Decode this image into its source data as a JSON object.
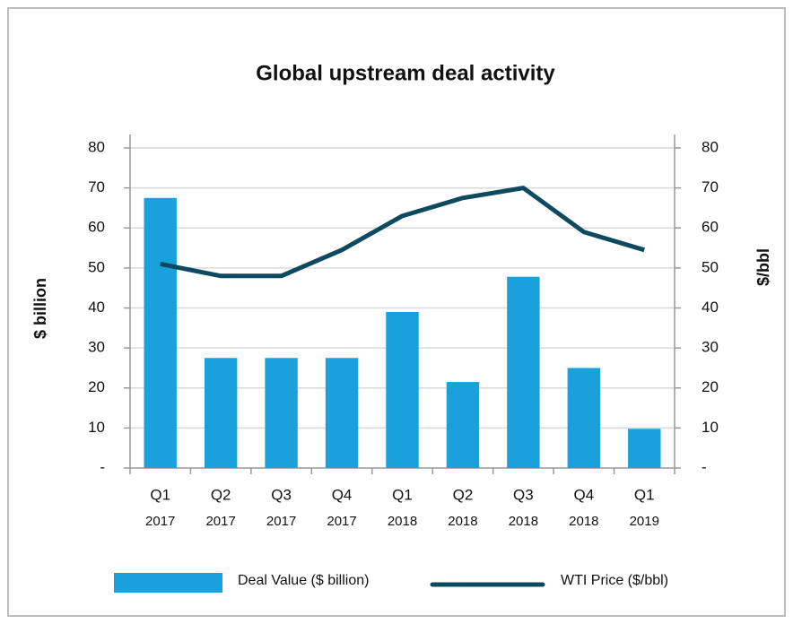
{
  "chart_data": {
    "type": "bar_line",
    "title": "Global upstream deal activity",
    "categories": [
      [
        "Q1",
        "2017"
      ],
      [
        "Q2",
        "2017"
      ],
      [
        "Q3",
        "2017"
      ],
      [
        "Q4",
        "2017"
      ],
      [
        "Q1",
        "2018"
      ],
      [
        "Q2",
        "2018"
      ],
      [
        "Q3",
        "2018"
      ],
      [
        "Q4",
        "2018"
      ],
      [
        "Q1",
        "2019"
      ]
    ],
    "series": [
      {
        "name": "Deal Value ($ billion)",
        "type": "bar",
        "color": "#1aa1db",
        "values": [
          67.5,
          27.5,
          27.5,
          27.5,
          39,
          21.5,
          47.8,
          25,
          9.8
        ]
      },
      {
        "name": "WTI Price ($/bbl)",
        "type": "line",
        "axis": "y2",
        "color": "#0e4a5f",
        "values": [
          51,
          48,
          48,
          54.5,
          63,
          67.5,
          70,
          59,
          54.5
        ]
      }
    ],
    "ylabel": "$ billion",
    "y2label": "$/bbl",
    "ylim": [
      0,
      80
    ],
    "yticks": [
      {
        "value": 0,
        "label": "-"
      },
      10,
      20,
      30,
      40,
      50,
      60,
      70,
      80
    ],
    "y2lim": [
      0,
      80
    ],
    "y2ticks": [
      {
        "value": 0,
        "label": "-"
      },
      10,
      20,
      30,
      40,
      50,
      60,
      70,
      80
    ],
    "grid": true,
    "legend": "bottom"
  }
}
